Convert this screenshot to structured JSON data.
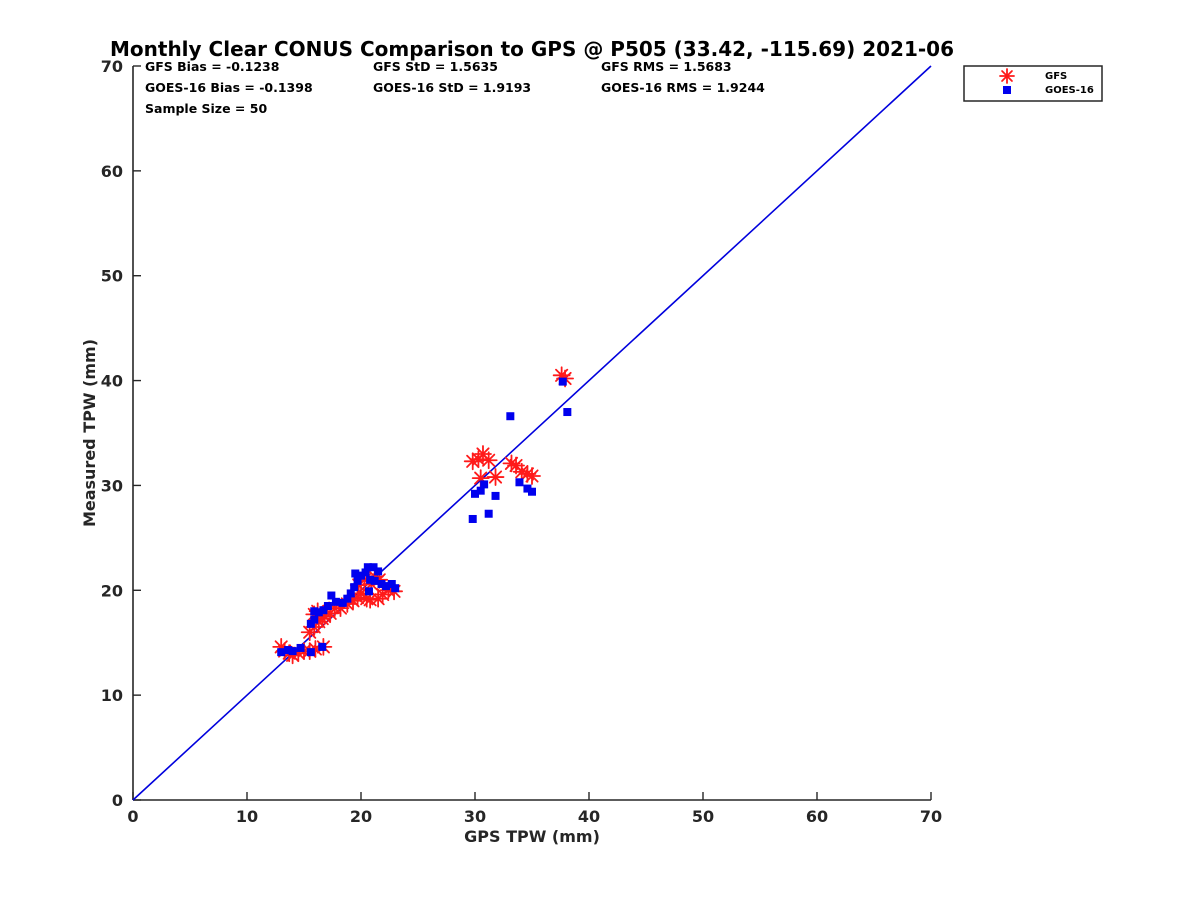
{
  "chart_data": {
    "type": "scatter",
    "title": "Monthly Clear CONUS Comparison to GPS @ P505 (33.42, -115.69) 2021-06",
    "xlabel": "GPS TPW (mm)",
    "ylabel": "Measured TPW (mm)",
    "xlim": [
      0,
      70
    ],
    "ylim": [
      0,
      70
    ],
    "xticks": [
      "0",
      "10",
      "20",
      "30",
      "40",
      "50",
      "60",
      "70"
    ],
    "yticks": [
      "0",
      "10",
      "20",
      "30",
      "40",
      "50",
      "60",
      "70"
    ],
    "grid": false,
    "legend_position": "outside-top-right",
    "stats": {
      "gfs_bias": "GFS Bias = -0.1238",
      "goes_bias": "GOES-16 Bias = -0.1398",
      "sample_size": "Sample Size = 50",
      "gfs_std": "GFS StD = 1.5635",
      "goes_std": "GOES-16 StD = 1.9193",
      "gfs_rms": "GFS RMS = 1.5683",
      "goes_rms": "GOES-16 RMS = 1.9244"
    },
    "reference_line": {
      "x": [
        0,
        70
      ],
      "y": [
        0,
        70
      ],
      "color": "#0000dd"
    },
    "series": [
      {
        "name": "GFS",
        "marker": "asterisk",
        "color": "#ff1a1a",
        "points": [
          [
            13.0,
            14.6
          ],
          [
            13.3,
            14.2
          ],
          [
            13.7,
            14.0
          ],
          [
            14.0,
            13.8
          ],
          [
            14.5,
            14.0
          ],
          [
            15.0,
            14.2
          ],
          [
            15.5,
            14.2
          ],
          [
            16.0,
            14.4
          ],
          [
            16.7,
            14.6
          ],
          [
            15.5,
            16.0
          ],
          [
            15.9,
            16.5
          ],
          [
            16.3,
            17.0
          ],
          [
            16.6,
            17.3
          ],
          [
            15.9,
            17.7
          ],
          [
            16.2,
            18.0
          ],
          [
            16.8,
            17.5
          ],
          [
            17.3,
            17.8
          ],
          [
            17.7,
            18.3
          ],
          [
            18.2,
            18.3
          ],
          [
            18.8,
            18.7
          ],
          [
            19.3,
            19.0
          ],
          [
            19.7,
            19.3
          ],
          [
            20.0,
            19.7
          ],
          [
            20.5,
            19.2
          ],
          [
            20.8,
            19.1
          ],
          [
            21.5,
            19.2
          ],
          [
            21.9,
            19.6
          ],
          [
            22.4,
            20.0
          ],
          [
            22.9,
            19.9
          ],
          [
            19.8,
            20.5
          ],
          [
            20.3,
            21.0
          ],
          [
            20.9,
            20.6
          ],
          [
            21.2,
            21.3
          ],
          [
            21.6,
            21.0
          ],
          [
            29.8,
            32.3
          ],
          [
            30.3,
            32.5
          ],
          [
            30.7,
            33.0
          ],
          [
            31.2,
            32.4
          ],
          [
            30.5,
            30.7
          ],
          [
            31.8,
            30.8
          ],
          [
            33.2,
            32.1
          ],
          [
            33.6,
            31.9
          ],
          [
            34.1,
            31.3
          ],
          [
            34.6,
            31.1
          ],
          [
            35.0,
            30.9
          ],
          [
            37.6,
            40.5
          ],
          [
            37.9,
            40.2
          ]
        ]
      },
      {
        "name": "GOES-16",
        "marker": "square",
        "color": "#0000ee",
        "points": [
          [
            13.0,
            14.1
          ],
          [
            13.6,
            14.3
          ],
          [
            14.0,
            14.2
          ],
          [
            14.7,
            14.5
          ],
          [
            15.6,
            14.1
          ],
          [
            16.6,
            14.6
          ],
          [
            15.6,
            16.8
          ],
          [
            15.9,
            17.2
          ],
          [
            15.9,
            18.0
          ],
          [
            16.3,
            17.9
          ],
          [
            16.7,
            18.1
          ],
          [
            17.1,
            18.5
          ],
          [
            17.4,
            19.5
          ],
          [
            17.8,
            18.9
          ],
          [
            18.4,
            18.8
          ],
          [
            18.8,
            19.2
          ],
          [
            19.1,
            19.7
          ],
          [
            19.4,
            20.3
          ],
          [
            19.7,
            20.9
          ],
          [
            19.5,
            21.6
          ],
          [
            20.0,
            21.4
          ],
          [
            20.4,
            21.7
          ],
          [
            20.6,
            22.2
          ],
          [
            20.8,
            21.0
          ],
          [
            21.1,
            22.2
          ],
          [
            21.2,
            20.9
          ],
          [
            21.5,
            21.8
          ],
          [
            20.7,
            19.9
          ],
          [
            21.8,
            20.6
          ],
          [
            22.2,
            20.4
          ],
          [
            22.7,
            20.6
          ],
          [
            23.0,
            20.2
          ],
          [
            29.8,
            26.8
          ],
          [
            30.0,
            29.2
          ],
          [
            30.5,
            29.5
          ],
          [
            30.8,
            30.1
          ],
          [
            31.2,
            27.3
          ],
          [
            31.8,
            29.0
          ],
          [
            33.1,
            36.6
          ],
          [
            33.9,
            30.3
          ],
          [
            34.6,
            29.7
          ],
          [
            35.0,
            29.4
          ],
          [
            37.7,
            39.9
          ],
          [
            38.1,
            37.0
          ]
        ]
      }
    ]
  }
}
